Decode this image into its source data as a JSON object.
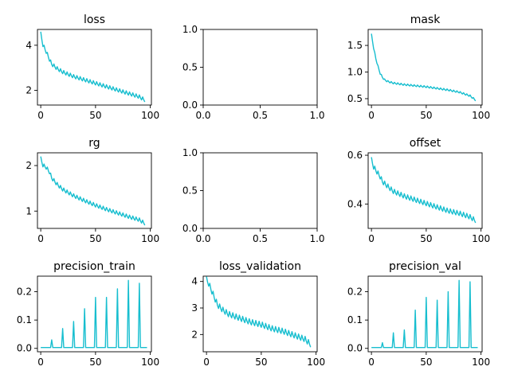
{
  "chart_data": [
    {
      "type": "line",
      "title": "loss",
      "xlabel": "",
      "ylabel": "",
      "xlim": [
        -3,
        101
      ],
      "ylim": [
        1.35,
        4.7
      ],
      "xticks": [
        0,
        50,
        100
      ],
      "xtick_labels": [
        "0",
        "50",
        "100"
      ],
      "yticks": [
        2,
        4
      ],
      "ytick_labels": [
        "2",
        "4"
      ],
      "x": [
        0,
        2,
        5,
        8,
        10,
        15,
        20,
        30,
        40,
        50,
        60,
        70,
        80,
        90,
        95
      ],
      "y": [
        4.5,
        4.0,
        3.7,
        3.35,
        3.15,
        2.95,
        2.8,
        2.6,
        2.45,
        2.3,
        2.15,
        2.0,
        1.85,
        1.7,
        1.55
      ],
      "sawtooth_period": 3,
      "sawtooth_amp": 0.1,
      "series_color": "#17becf"
    },
    {
      "type": "line",
      "title": "",
      "xlabel": "",
      "ylabel": "",
      "xlim": [
        0,
        1
      ],
      "ylim": [
        0,
        1
      ],
      "xticks": [
        0,
        0.5,
        1
      ],
      "xtick_labels": [
        "0.0",
        "0.5",
        "1.0"
      ],
      "yticks": [
        0,
        0.5,
        1
      ],
      "ytick_labels": [
        "0.0",
        "0.5",
        "1.0"
      ],
      "x": [],
      "y": [],
      "series_color": "#17becf"
    },
    {
      "type": "line",
      "title": "mask",
      "xlabel": "",
      "ylabel": "",
      "xlim": [
        -3,
        101
      ],
      "ylim": [
        0.38,
        1.8
      ],
      "xticks": [
        0,
        50,
        100
      ],
      "xtick_labels": [
        "0",
        "50",
        "100"
      ],
      "yticks": [
        0.5,
        1.0,
        1.5
      ],
      "ytick_labels": [
        "0.5",
        "1.0",
        "1.5"
      ],
      "x": [
        0,
        2,
        4,
        6,
        8,
        10,
        12,
        15,
        20,
        30,
        40,
        50,
        60,
        70,
        80,
        90,
        95
      ],
      "y": [
        1.7,
        1.45,
        1.25,
        1.1,
        0.97,
        0.9,
        0.85,
        0.82,
        0.79,
        0.76,
        0.74,
        0.72,
        0.69,
        0.66,
        0.62,
        0.55,
        0.47
      ],
      "sawtooth_period": 3,
      "sawtooth_amp": 0.02,
      "series_color": "#17becf"
    },
    {
      "type": "line",
      "title": "rg",
      "xlabel": "",
      "ylabel": "",
      "xlim": [
        -3,
        101
      ],
      "ylim": [
        0.62,
        2.28
      ],
      "xticks": [
        0,
        50,
        100
      ],
      "xtick_labels": [
        "0",
        "50",
        "100"
      ],
      "yticks": [
        1,
        2
      ],
      "ytick_labels": [
        "1",
        "2"
      ],
      "x": [
        0,
        2,
        5,
        8,
        10,
        15,
        20,
        30,
        40,
        50,
        60,
        70,
        80,
        90,
        95
      ],
      "y": [
        2.15,
        2.0,
        1.95,
        1.85,
        1.72,
        1.58,
        1.47,
        1.33,
        1.22,
        1.12,
        1.03,
        0.95,
        0.87,
        0.8,
        0.72
      ],
      "sawtooth_period": 3,
      "sawtooth_amp": 0.05,
      "series_color": "#17becf"
    },
    {
      "type": "line",
      "title": "",
      "xlabel": "",
      "ylabel": "",
      "xlim": [
        0,
        1
      ],
      "ylim": [
        0,
        1
      ],
      "xticks": [
        0,
        0.5,
        1
      ],
      "xtick_labels": [
        "0.0",
        "0.5",
        "1.0"
      ],
      "yticks": [
        0,
        0.5,
        1
      ],
      "ytick_labels": [
        "0.0",
        "0.5",
        "1.0"
      ],
      "x": [],
      "y": [],
      "series_color": "#17becf"
    },
    {
      "type": "line",
      "title": "offset",
      "xlabel": "",
      "ylabel": "",
      "xlim": [
        -3,
        101
      ],
      "ylim": [
        0.3,
        0.61
      ],
      "xticks": [
        0,
        50,
        100
      ],
      "xtick_labels": [
        "0",
        "50",
        "100"
      ],
      "yticks": [
        0.4,
        0.6
      ],
      "ytick_labels": [
        "0.4",
        "0.6"
      ],
      "x": [
        0,
        2,
        5,
        8,
        10,
        15,
        20,
        30,
        40,
        50,
        60,
        70,
        80,
        90,
        95
      ],
      "y": [
        0.58,
        0.55,
        0.53,
        0.51,
        0.49,
        0.47,
        0.45,
        0.43,
        0.415,
        0.4,
        0.385,
        0.37,
        0.36,
        0.345,
        0.33
      ],
      "sawtooth_period": 3,
      "sawtooth_amp": 0.012,
      "series_color": "#17becf"
    },
    {
      "type": "line",
      "title": "precision_train",
      "xlabel": "",
      "ylabel": "",
      "xlim": [
        -3,
        101
      ],
      "ylim": [
        -0.012,
        0.255
      ],
      "xticks": [
        0,
        50,
        100
      ],
      "xtick_labels": [
        "0",
        "50",
        "100"
      ],
      "yticks": [
        0.0,
        0.1,
        0.2
      ],
      "ytick_labels": [
        "0.0",
        "0.1",
        "0.2"
      ],
      "x": [
        0,
        9,
        10,
        11,
        19,
        20,
        21,
        29,
        30,
        31,
        39,
        40,
        41,
        49,
        50,
        51,
        59,
        60,
        61,
        69,
        70,
        71,
        79,
        80,
        81,
        89,
        90,
        91,
        97
      ],
      "y": [
        0.003,
        0.003,
        0.03,
        0.003,
        0.003,
        0.07,
        0.003,
        0.003,
        0.095,
        0.003,
        0.003,
        0.14,
        0.003,
        0.003,
        0.18,
        0.003,
        0.003,
        0.18,
        0.003,
        0.003,
        0.21,
        0.003,
        0.003,
        0.24,
        0.003,
        0.003,
        0.23,
        0.003,
        0.003
      ],
      "series_color": "#17becf"
    },
    {
      "type": "line",
      "title": "loss_validation",
      "xlabel": "",
      "ylabel": "",
      "xlim": [
        -3,
        101
      ],
      "ylim": [
        1.35,
        4.2
      ],
      "xticks": [
        0,
        50,
        100
      ],
      "xtick_labels": [
        "0",
        "50",
        "100"
      ],
      "yticks": [
        2,
        3,
        4
      ],
      "ytick_labels": [
        "2",
        "3",
        "4"
      ],
      "x": [
        0,
        2,
        5,
        8,
        10,
        15,
        20,
        30,
        40,
        50,
        60,
        70,
        80,
        90,
        95
      ],
      "y": [
        4.05,
        3.9,
        3.6,
        3.3,
        3.1,
        2.9,
        2.75,
        2.6,
        2.45,
        2.35,
        2.2,
        2.1,
        1.95,
        1.8,
        1.6
      ],
      "sawtooth_period": 3,
      "sawtooth_amp": 0.13,
      "series_color": "#17becf"
    },
    {
      "type": "line",
      "title": "precision_val",
      "xlabel": "",
      "ylabel": "",
      "xlim": [
        -3,
        101
      ],
      "ylim": [
        -0.012,
        0.255
      ],
      "xticks": [
        0,
        50,
        100
      ],
      "xtick_labels": [
        "0",
        "50",
        "100"
      ],
      "yticks": [
        0.0,
        0.1,
        0.2
      ],
      "ytick_labels": [
        "0.0",
        "0.1",
        "0.2"
      ],
      "x": [
        0,
        9,
        10,
        11,
        19,
        20,
        21,
        29,
        30,
        31,
        39,
        40,
        41,
        49,
        50,
        51,
        59,
        60,
        61,
        69,
        70,
        71,
        79,
        80,
        81,
        89,
        90,
        91,
        97
      ],
      "y": [
        0.003,
        0.003,
        0.02,
        0.003,
        0.003,
        0.055,
        0.003,
        0.003,
        0.065,
        0.003,
        0.003,
        0.135,
        0.003,
        0.003,
        0.18,
        0.003,
        0.003,
        0.17,
        0.003,
        0.003,
        0.2,
        0.003,
        0.003,
        0.24,
        0.003,
        0.003,
        0.235,
        0.003,
        0.003
      ],
      "series_color": "#17becf"
    }
  ]
}
